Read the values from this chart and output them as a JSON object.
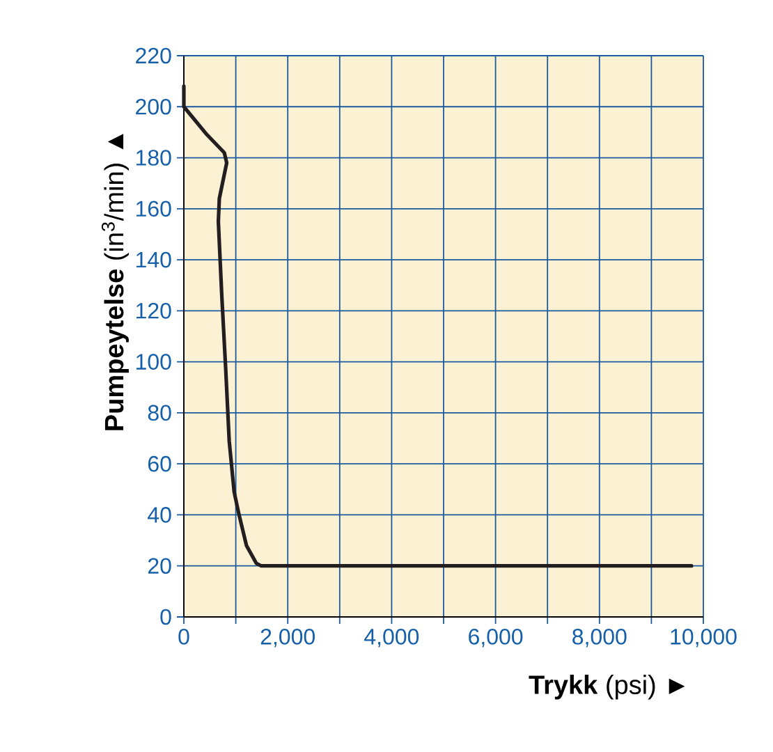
{
  "chart_data": {
    "type": "line",
    "xlabel": "**Trykk** (psi) ►",
    "ylabel": "**Pumpeytelse** (in$^{3}$/min) ▲",
    "x": [
      0,
      0,
      446,
      778,
      825,
      683,
      664,
      730,
      806,
      873,
      968,
      1063,
      1205,
      1395,
      1490,
      9772
    ],
    "series": [
      {
        "color": "#231f20",
        "values": [
          208,
          200,
          189,
          182,
          178,
          164,
          155,
          126,
          97,
          69,
          49,
          40,
          28,
          21,
          20,
          20
        ]
      }
    ],
    "xlim": [
      0,
      10000
    ],
    "ylim": [
      0,
      220
    ],
    "xticks": [
      0,
      {
        "value": 1000,
        "label": null
      },
      {
        "value": 2000,
        "label": "2,000"
      },
      {
        "value": 3000,
        "label": null
      },
      {
        "value": 4000,
        "label": "4,000"
      },
      {
        "value": 5000,
        "label": null
      },
      {
        "value": 6000,
        "label": "6,000"
      },
      {
        "value": 7000,
        "label": null
      },
      {
        "value": 8000,
        "label": "8,000"
      },
      {
        "value": 9000,
        "label": null
      },
      {
        "value": 10000,
        "label": "10,000"
      }
    ],
    "yticks": [
      0,
      20,
      40,
      60,
      80,
      100,
      120,
      140,
      160,
      180,
      200,
      220
    ],
    "grid": true,
    "marker": "none",
    "line_style": "solid"
  }
}
